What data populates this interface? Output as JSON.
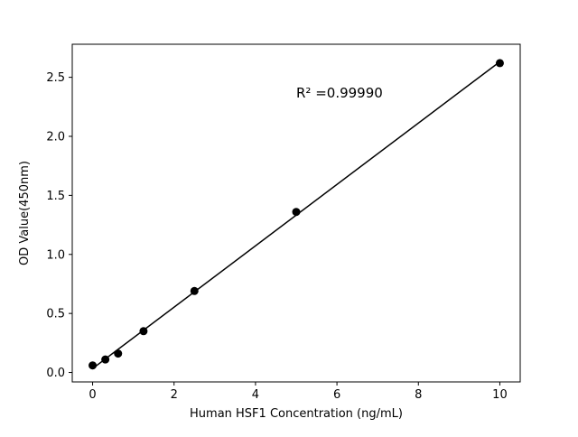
{
  "figure": {
    "background": "#ffffff"
  },
  "chart_data": {
    "type": "scatter",
    "xlabel": "Human HSF1 Concentration (ng/mL)",
    "ylabel": "OD Value(450nm)",
    "x": [
      0,
      0.3125,
      0.625,
      1.25,
      2.5,
      5,
      10
    ],
    "y": [
      0.06,
      0.11,
      0.16,
      0.35,
      0.69,
      1.36,
      2.62
    ],
    "trendline": true,
    "annotation": {
      "text": "R² =0.99990",
      "x": 5.0,
      "y": 2.33
    },
    "xlim": [
      -0.5,
      10.5
    ],
    "ylim": [
      -0.08,
      2.78
    ],
    "xticks": [
      0,
      2,
      4,
      6,
      8,
      10
    ],
    "xtick_labels": [
      "0",
      "2",
      "4",
      "6",
      "8",
      "10"
    ],
    "yticks": [
      0.0,
      0.5,
      1.0,
      1.5,
      2.0,
      2.5
    ],
    "ytick_labels": [
      "0.0",
      "0.5",
      "1.0",
      "1.5",
      "2.0",
      "2.5"
    ],
    "marker_color": "#000000",
    "line_color": "#000000",
    "grid": false,
    "legend": null
  }
}
